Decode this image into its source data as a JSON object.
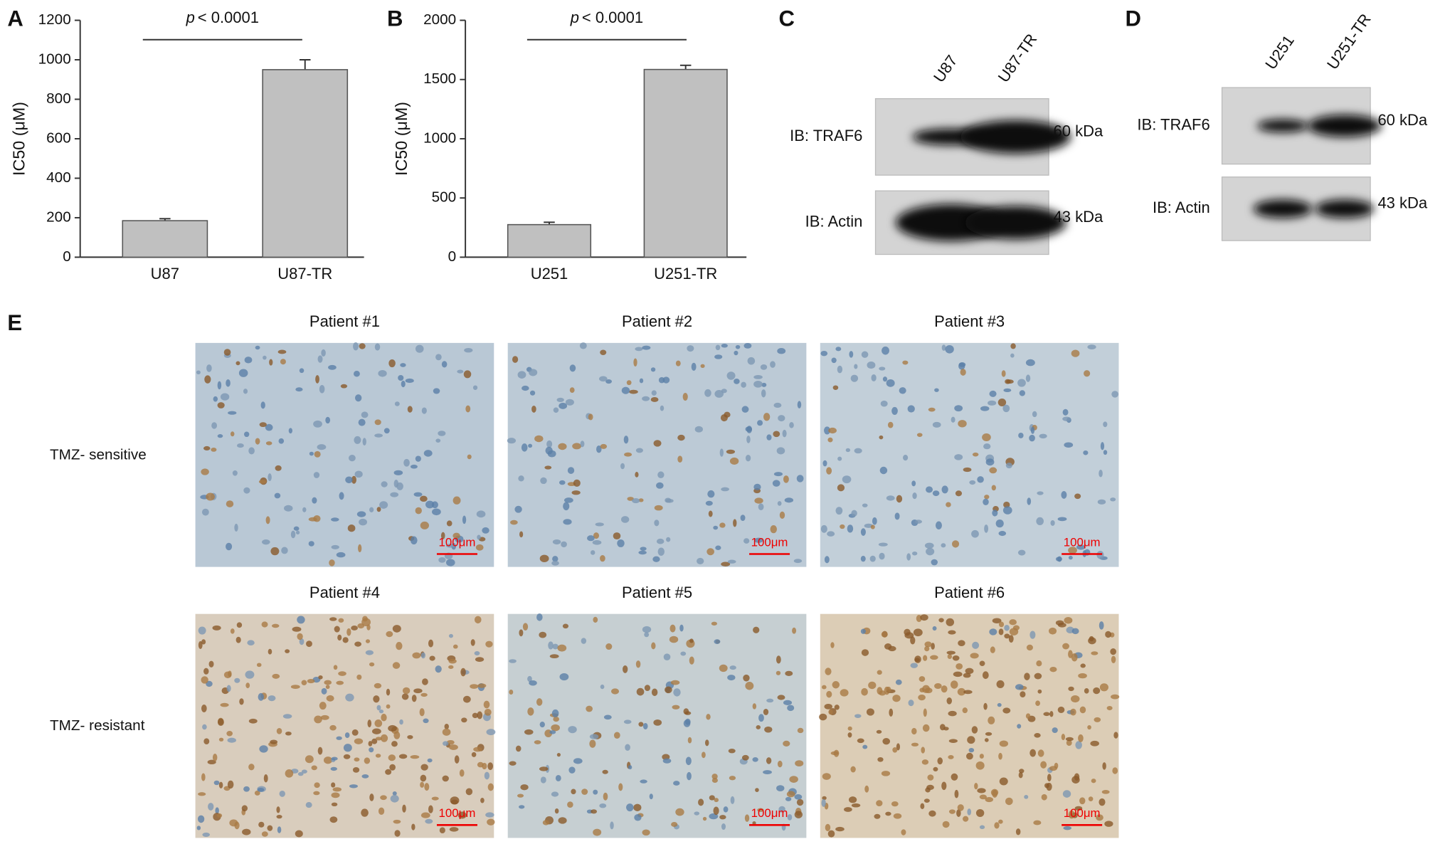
{
  "chart_data": [
    {
      "type": "bar",
      "panel": "A",
      "y_label": "IC50 (μM)",
      "categories": [
        "U87",
        "U87-TR"
      ],
      "values": [
        185,
        950
      ],
      "errors": [
        10,
        50
      ],
      "color": "#c0c0c0",
      "ylim": [
        0,
        1200
      ],
      "yticks": [
        0,
        200,
        400,
        600,
        800,
        1000,
        1200
      ],
      "annotation": {
        "italic": "p",
        "text": "< 0.0001"
      }
    },
    {
      "type": "bar",
      "panel": "B",
      "y_label": "IC50 (μM)",
      "categories": [
        "U251",
        "U251-TR"
      ],
      "values": [
        275,
        1585
      ],
      "errors": [
        20,
        35
      ],
      "color": "#c0c0c0",
      "ylim": [
        0,
        2000
      ],
      "yticks": [
        0,
        500,
        1000,
        1500,
        2000
      ],
      "annotation": {
        "italic": "p",
        "text": "< 0.0001"
      }
    }
  ],
  "blots": [
    {
      "panel": "C",
      "lanes": [
        "U87",
        "U87-TR"
      ],
      "rows": [
        {
          "label": "IB: TRAF6",
          "size": "60 kDa"
        },
        {
          "label": "IB: Actin",
          "size": "43 kDa"
        }
      ]
    },
    {
      "panel": "D",
      "lanes": [
        "U251",
        "U251-TR"
      ],
      "rows": [
        {
          "label": "IB: TRAF6",
          "size": "60 kDa"
        },
        {
          "label": "IB: Actin",
          "size": "43 kDa"
        }
      ]
    }
  ],
  "ihc": {
    "panel": "E",
    "rows": [
      "TMZ- sensitive",
      "TMZ- resistant"
    ],
    "images": [
      {
        "title": "Patient #1",
        "scale": "100μm"
      },
      {
        "title": "Patient #2",
        "scale": "100μm"
      },
      {
        "title": "Patient #3",
        "scale": "100μm"
      },
      {
        "title": "Patient #4",
        "scale": "100μm"
      },
      {
        "title": "Patient #5",
        "scale": "100μm"
      },
      {
        "title": "Patient #6",
        "scale": "100μm"
      }
    ]
  }
}
